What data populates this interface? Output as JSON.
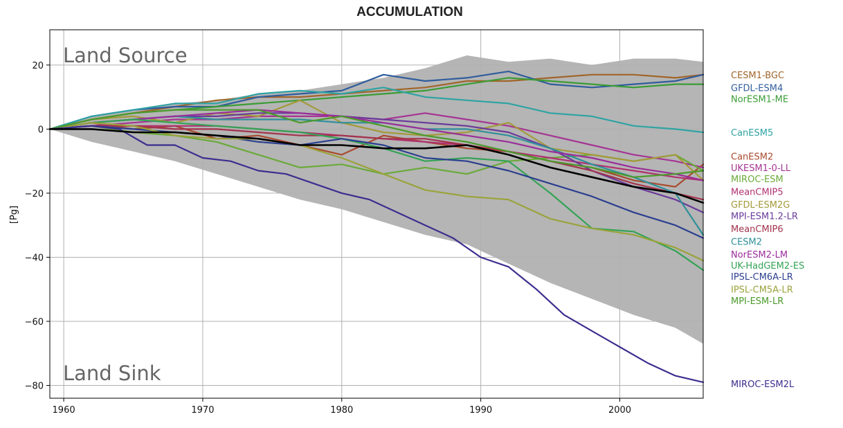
{
  "chart_data": {
    "type": "line",
    "title": "ACCUMULATION",
    "xlabel": "",
    "ylabel": "[Pg]",
    "xlim": [
      1959,
      2006
    ],
    "ylim": [
      -84,
      31
    ],
    "xticks": [
      1960,
      1970,
      1980,
      1990,
      2000
    ],
    "yticks": [
      -80,
      -60,
      -40,
      -20,
      0,
      20
    ],
    "ytick_labels": [
      "−80",
      "−60",
      "−40",
      "−20",
      "0",
      "20"
    ],
    "grid": true,
    "annotations": {
      "top": "Land Source",
      "bottom": "Land Sink"
    },
    "envelope": {
      "x": [
        1959,
        1962,
        1965,
        1968,
        1971,
        1974,
        1977,
        1980,
        1983,
        1986,
        1989,
        1992,
        1995,
        1998,
        2001,
        2004,
        2006
      ],
      "upper": [
        0,
        4,
        6,
        8,
        9,
        11,
        12,
        14,
        16,
        19,
        23,
        21,
        22,
        20,
        22,
        22,
        21
      ],
      "lower": [
        0,
        -4,
        -7,
        -10,
        -14,
        -18,
        -22,
        -25,
        -29,
        -33,
        -36,
        -42,
        -48,
        -53,
        -58,
        -62,
        -67
      ]
    },
    "series": [
      {
        "name": "CESM1-BGC",
        "color": "#a0652a",
        "x": [
          1959,
          1962,
          1965,
          1968,
          1971,
          1974,
          1977,
          1980,
          1983,
          1986,
          1989,
          1992,
          1995,
          1998,
          2001,
          2004,
          2006
        ],
        "y": [
          0,
          3,
          5,
          7,
          9,
          10,
          10,
          11,
          12,
          13,
          15,
          15,
          16,
          17,
          17,
          16,
          17
        ]
      },
      {
        "name": "GFDL-ESM4",
        "color": "#2f5c9c",
        "x": [
          1959,
          1962,
          1965,
          1968,
          1971,
          1974,
          1977,
          1980,
          1983,
          1986,
          1989,
          1992,
          1995,
          1998,
          2001,
          2004,
          2006
        ],
        "y": [
          0,
          4,
          6,
          7,
          7,
          10,
          11,
          12,
          17,
          15,
          16,
          18,
          14,
          13,
          14,
          15,
          17
        ]
      },
      {
        "name": "NorESM1-ME",
        "color": "#3a9c35",
        "x": [
          1959,
          1962,
          1965,
          1968,
          1971,
          1974,
          1977,
          1980,
          1983,
          1986,
          1989,
          1992,
          1995,
          1998,
          2001,
          2004,
          2006
        ],
        "y": [
          0,
          3,
          5,
          6,
          7,
          8,
          9,
          10,
          11,
          12,
          14,
          16,
          15,
          14,
          13,
          14,
          14
        ]
      },
      {
        "name": "CanESM5",
        "color": "#2fa3a3",
        "x": [
          1959,
          1962,
          1965,
          1968,
          1971,
          1974,
          1977,
          1980,
          1983,
          1986,
          1989,
          1992,
          1995,
          1998,
          2001,
          2004,
          2006
        ],
        "y": [
          0,
          4,
          6,
          8,
          8,
          11,
          12,
          11,
          13,
          10,
          9,
          8,
          5,
          4,
          1,
          0,
          -1
        ]
      },
      {
        "name": "CanESM2",
        "color": "#a84a2e",
        "x": [
          1959,
          1962,
          1965,
          1968,
          1971,
          1974,
          1977,
          1980,
          1983,
          1986,
          1989,
          1992,
          1995,
          1998,
          2001,
          2004,
          2006
        ],
        "y": [
          0,
          2,
          0,
          1,
          -3,
          -2,
          -5,
          -8,
          -2,
          -4,
          -6,
          -7,
          -10,
          -12,
          -16,
          -18,
          -11
        ]
      },
      {
        "name": "UKESM1-0-LL",
        "color": "#a53493",
        "x": [
          1959,
          1962,
          1965,
          1968,
          1971,
          1974,
          1977,
          1980,
          1983,
          1986,
          1989,
          1992,
          1995,
          1998,
          2001,
          2004,
          2006
        ],
        "y": [
          0,
          1,
          2,
          3,
          3,
          4,
          4,
          4,
          3,
          5,
          3,
          1,
          -2,
          -5,
          -8,
          -10,
          -12
        ]
      },
      {
        "name": "MIROC-ESM",
        "color": "#6aaa39",
        "x": [
          1959,
          1962,
          1965,
          1968,
          1971,
          1974,
          1977,
          1980,
          1983,
          1986,
          1989,
          1992,
          1995,
          1998,
          2001,
          2004,
          2006
        ],
        "y": [
          0,
          1,
          -1,
          -2,
          -4,
          -8,
          -12,
          -11,
          -14,
          -12,
          -14,
          -10,
          -9,
          -8,
          -10,
          -8,
          -13
        ]
      },
      {
        "name": "MeanCMIP5",
        "color": "#b0306f",
        "x": [
          1959,
          1962,
          1965,
          1968,
          1971,
          1974,
          1977,
          1980,
          1983,
          1986,
          1989,
          1992,
          1995,
          1998,
          2001,
          2004,
          2006
        ],
        "y": [
          0,
          1,
          1,
          1,
          1,
          0,
          -1,
          -2,
          -3,
          -4,
          -5,
          -7,
          -9,
          -11,
          -13,
          -15,
          -16
        ]
      },
      {
        "name": "GFDL-ESM2G",
        "color": "#a3993a",
        "x": [
          1959,
          1962,
          1965,
          1968,
          1971,
          1974,
          1977,
          1980,
          1983,
          1986,
          1989,
          1992,
          1995,
          1998,
          2001,
          2004,
          2006
        ],
        "y": [
          0,
          3,
          4,
          2,
          5,
          4,
          9,
          2,
          -1,
          -2,
          -1,
          2,
          -6,
          -8,
          -10,
          -8,
          -16
        ]
      },
      {
        "name": "MPI-ESM1.2-LR",
        "color": "#6a3a9a",
        "x": [
          1959,
          1962,
          1965,
          1968,
          1971,
          1974,
          1977,
          1980,
          1983,
          1986,
          1989,
          1992,
          1995,
          1998,
          2001,
          2004,
          2006
        ],
        "y": [
          0,
          2,
          3,
          4,
          4,
          5,
          5,
          4,
          3,
          2,
          1,
          -1,
          -6,
          -13,
          -18,
          -22,
          -26
        ]
      },
      {
        "name": "MeanCMIP6",
        "color": "#a3334c",
        "x": [
          1959,
          1962,
          1965,
          1968,
          1971,
          1974,
          1977,
          1980,
          1983,
          1986,
          1989,
          1992,
          1995,
          1998,
          2001,
          2004,
          2006
        ],
        "y": [
          0,
          1,
          1,
          0,
          0,
          -1,
          -2,
          -2,
          -3,
          -3,
          -5,
          -7,
          -10,
          -13,
          -17,
          -20,
          -22
        ]
      },
      {
        "name": "CESM2",
        "color": "#2f8f9a",
        "x": [
          1959,
          1962,
          1965,
          1968,
          1971,
          1974,
          1977,
          1980,
          1983,
          1986,
          1989,
          1992,
          1995,
          1998,
          2001,
          2004,
          2006
        ],
        "y": [
          0,
          2,
          3,
          4,
          3,
          3,
          3,
          2,
          2,
          0,
          0,
          -2,
          -6,
          -11,
          -15,
          -20,
          -33
        ]
      },
      {
        "name": "NorESM2-LM",
        "color": "#9a2d9a",
        "x": [
          1959,
          1962,
          1965,
          1968,
          1971,
          1974,
          1977,
          1980,
          1983,
          1986,
          1989,
          1992,
          1995,
          1998,
          2001,
          2004,
          2006
        ],
        "y": [
          0,
          2,
          3,
          4,
          5,
          6,
          5,
          4,
          2,
          0,
          -2,
          -4,
          -7,
          -9,
          -12,
          -14,
          -16
        ]
      },
      {
        "name": "UK-HadGEM2-ES",
        "color": "#33a355",
        "x": [
          1959,
          1962,
          1965,
          1968,
          1971,
          1974,
          1977,
          1980,
          1983,
          1986,
          1989,
          1992,
          1995,
          1998,
          2001,
          2004,
          2006
        ],
        "y": [
          0,
          2,
          3,
          2,
          1,
          0,
          -1,
          -3,
          -6,
          -10,
          -9,
          -10,
          -20,
          -31,
          -32,
          -38,
          -44
        ]
      },
      {
        "name": "IPSL-CM6A-LR",
        "color": "#2b3f8f",
        "x": [
          1959,
          1962,
          1965,
          1968,
          1971,
          1974,
          1977,
          1980,
          1983,
          1986,
          1989,
          1992,
          1995,
          1998,
          2001,
          2004,
          2006
        ],
        "y": [
          0,
          1,
          0,
          -1,
          -2,
          -4,
          -5,
          -3,
          -5,
          -9,
          -10,
          -13,
          -17,
          -21,
          -26,
          -30,
          -34
        ]
      },
      {
        "name": "IPSL-CM5A-LR",
        "color": "#9aa33a",
        "x": [
          1959,
          1962,
          1965,
          1968,
          1971,
          1974,
          1977,
          1980,
          1983,
          1986,
          1989,
          1992,
          1995,
          1998,
          2001,
          2004,
          2006
        ],
        "y": [
          0,
          2,
          1,
          -2,
          -3,
          -3,
          -5,
          -9,
          -14,
          -19,
          -21,
          -22,
          -28,
          -31,
          -33,
          -37,
          -41
        ]
      },
      {
        "name": "MPI-ESM-LR",
        "color": "#4a9a2a",
        "x": [
          1959,
          1962,
          1965,
          1968,
          1971,
          1974,
          1977,
          1980,
          1983,
          1986,
          1989,
          1992,
          1995,
          1998,
          2001,
          2004,
          2006
        ],
        "y": [
          0,
          3,
          5,
          6,
          6,
          6,
          2,
          4,
          1,
          -2,
          -4,
          -7,
          -10,
          -12,
          -15,
          -14,
          -13
        ]
      },
      {
        "name": "MIROC-ESM2L",
        "color": "#3b2e8f",
        "x": [
          1959,
          1962,
          1964,
          1966,
          1968,
          1970,
          1972,
          1974,
          1976,
          1978,
          1980,
          1982,
          1984,
          1986,
          1988,
          1990,
          1992,
          1994,
          1996,
          1998,
          2000,
          2002,
          2004,
          2006
        ],
        "y": [
          0,
          1,
          0,
          -5,
          -5,
          -9,
          -10,
          -13,
          -14,
          -17,
          -20,
          -22,
          -26,
          -30,
          -34,
          -40,
          -43,
          -50,
          -58,
          -63,
          -68,
          -73,
          -77,
          -79
        ]
      },
      {
        "name": "",
        "color": "#000000",
        "width": 2.6,
        "x": [
          1959,
          1962,
          1965,
          1968,
          1971,
          1974,
          1977,
          1980,
          1983,
          1986,
          1989,
          1992,
          1995,
          1998,
          2001,
          2004,
          2006
        ],
        "y": [
          0,
          0,
          -1,
          -1,
          -2,
          -3,
          -5,
          -5,
          -6,
          -6,
          -5,
          -8,
          -12,
          -15,
          -18,
          -20,
          -23
        ]
      }
    ],
    "legend": {
      "placement": "right",
      "entries": [
        {
          "label": "CESM1-BGC",
          "color": "#a0652a",
          "anchor_y": 17
        },
        {
          "label": "GFDL-ESM4",
          "color": "#2f5c9c",
          "anchor_y": 13
        },
        {
          "label": "NorESM1-ME",
          "color": "#3a9c35",
          "anchor_y": 9.5
        },
        {
          "label": "CanESM5",
          "color": "#2fa3a3",
          "anchor_y": -1
        },
        {
          "label": "CanESM2",
          "color": "#a84a2e",
          "anchor_y": -8.5
        },
        {
          "label": "UKESM1-0-LL",
          "color": "#a53493",
          "anchor_y": -12
        },
        {
          "label": "MIROC-ESM",
          "color": "#6aaa39",
          "anchor_y": -15.5
        },
        {
          "label": "MeanCMIP5",
          "color": "#b0306f",
          "anchor_y": -19.5
        },
        {
          "label": "GFDL-ESM2G",
          "color": "#a3993a",
          "anchor_y": -23.5
        },
        {
          "label": "MPI-ESM1.2-LR",
          "color": "#6a3a9a",
          "anchor_y": -27
        },
        {
          "label": "MeanCMIP6",
          "color": "#a3334c",
          "anchor_y": -31
        },
        {
          "label": "CESM2",
          "color": "#2f8f9a",
          "anchor_y": -35
        },
        {
          "label": "NorESM2-LM",
          "color": "#9a2d9a",
          "anchor_y": -39
        },
        {
          "label": "UK-HadGEM2-ES",
          "color": "#33a355",
          "anchor_y": -42.5
        },
        {
          "label": "IPSL-CM6A-LR",
          "color": "#2b3f8f",
          "anchor_y": -46
        },
        {
          "label": "IPSL-CM5A-LR",
          "color": "#9aa33a",
          "anchor_y": -50
        },
        {
          "label": "MPI-ESM-LR",
          "color": "#4a9a2a",
          "anchor_y": -53.5
        },
        {
          "label": "MIROC-ESM2L",
          "color": "#3b2e8f",
          "anchor_y": -79.5
        }
      ]
    },
    "colors": {
      "envelope": "#b5b5b5",
      "grid": "#b0b0b0",
      "corner_text": "#666666"
    }
  }
}
